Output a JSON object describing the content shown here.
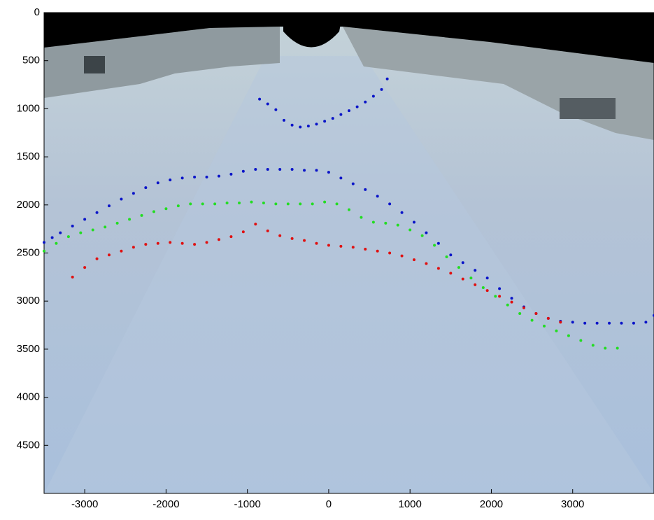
{
  "chart_data": {
    "type": "scatter",
    "xlim": [
      -3500,
      4000
    ],
    "ylim": [
      0,
      5000
    ],
    "y_reversed": true,
    "xticks": [
      -3000,
      -2000,
      -1000,
      0,
      1000,
      2000,
      3000
    ],
    "yticks": [
      0,
      500,
      1000,
      1500,
      2000,
      2500,
      3000,
      3500,
      4000,
      4500
    ],
    "series": [
      {
        "color": "#0a14c8",
        "x": [
          -850,
          -750,
          -650,
          -550,
          -450,
          -350,
          -250,
          -150,
          -50,
          50,
          150,
          250,
          350,
          450,
          550,
          650,
          720
        ],
        "y": [
          900,
          950,
          1010,
          1120,
          1170,
          1190,
          1180,
          1160,
          1130,
          1100,
          1060,
          1020,
          980,
          930,
          870,
          800,
          690
        ]
      },
      {
        "color": "#0a14c8",
        "x": [
          -3500,
          -3400,
          -3300,
          -3150,
          -3000,
          -2850,
          -2700,
          -2550,
          -2400,
          -2250,
          -2100,
          -1950,
          -1800,
          -1650,
          -1500,
          -1350,
          -1200,
          -1050,
          -900,
          -750,
          -600,
          -450,
          -300,
          -150,
          0,
          150,
          300,
          450,
          600,
          750,
          900,
          1050,
          1200,
          1350,
          1500,
          1650,
          1800,
          1950,
          2100,
          2250,
          2400,
          2550,
          2700,
          2850,
          3000,
          3150,
          3300,
          3450,
          3600,
          3750,
          3900,
          4000
        ],
        "y": [
          2390,
          2340,
          2290,
          2220,
          2150,
          2080,
          2010,
          1940,
          1880,
          1820,
          1770,
          1740,
          1720,
          1710,
          1710,
          1700,
          1680,
          1650,
          1630,
          1630,
          1630,
          1630,
          1640,
          1640,
          1660,
          1720,
          1780,
          1840,
          1910,
          1990,
          2080,
          2180,
          2290,
          2400,
          2520,
          2600,
          2680,
          2760,
          2870,
          2970,
          3060,
          3130,
          3180,
          3210,
          3220,
          3230,
          3230,
          3230,
          3230,
          3230,
          3220,
          3150
        ]
      },
      {
        "color": "#22dd22",
        "x": [
          -3500,
          -3350,
          -3200,
          -3050,
          -2900,
          -2750,
          -2600,
          -2450,
          -2300,
          -2150,
          -2000,
          -1850,
          -1700,
          -1550,
          -1400,
          -1250,
          -1100,
          -950,
          -800,
          -650,
          -500,
          -350,
          -200,
          -50,
          100,
          250,
          400,
          550,
          700,
          850,
          1000,
          1150,
          1300,
          1450,
          1600,
          1750,
          1900,
          2050,
          2200,
          2350,
          2500,
          2650,
          2800,
          2950,
          3100,
          3250,
          3400,
          3550
        ],
        "y": [
          2480,
          2400,
          2330,
          2290,
          2260,
          2230,
          2190,
          2150,
          2110,
          2070,
          2040,
          2010,
          1990,
          1990,
          1990,
          1980,
          1980,
          1970,
          1980,
          1990,
          1990,
          1990,
          1990,
          1970,
          1990,
          2050,
          2130,
          2180,
          2190,
          2210,
          2260,
          2320,
          2420,
          2540,
          2650,
          2760,
          2860,
          2950,
          3040,
          3130,
          3200,
          3260,
          3310,
          3360,
          3410,
          3460,
          3490,
          3490
        ]
      },
      {
        "color": "#e01010",
        "x": [
          -3150,
          -3000,
          -2850,
          -2700,
          -2550,
          -2400,
          -2250,
          -2100,
          -1950,
          -1800,
          -1650,
          -1500,
          -1350,
          -1200,
          -1050,
          -900,
          -750,
          -600,
          -450,
          -300,
          -150,
          0,
          150,
          300,
          450,
          600,
          750,
          900,
          1050,
          1200,
          1350,
          1500,
          1650,
          1800,
          1950,
          2100,
          2250,
          2400,
          2550,
          2700,
          2850
        ],
        "y": [
          2750,
          2650,
          2560,
          2520,
          2480,
          2440,
          2410,
          2400,
          2390,
          2400,
          2410,
          2390,
          2360,
          2330,
          2280,
          2200,
          2270,
          2320,
          2350,
          2370,
          2400,
          2420,
          2430,
          2440,
          2460,
          2480,
          2500,
          2530,
          2570,
          2610,
          2660,
          2710,
          2770,
          2830,
          2890,
          2950,
          3010,
          3070,
          3130,
          3180,
          3220
        ]
      }
    ]
  }
}
